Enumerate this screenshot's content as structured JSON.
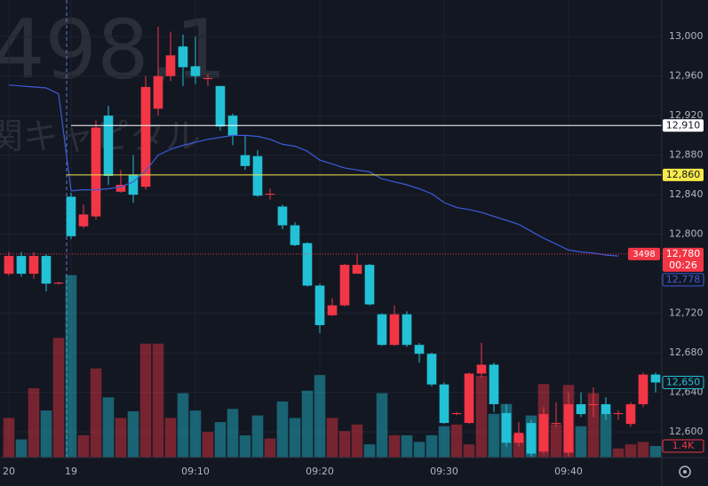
{
  "chart_data": {
    "type": "candlestick",
    "watermark": {
      "symbol": "498,1",
      "name": "関キャピタル"
    },
    "open": [
      12760,
      12778,
      12760,
      12778,
      12750,
      12838,
      12808,
      12818,
      12920,
      12843,
      12860,
      12848,
      12927,
      12960,
      12990,
      12970,
      12957,
      12950,
      12920,
      12880,
      12879,
      12840,
      12828,
      12809,
      12791,
      12748,
      12718,
      12728,
      12760,
      12769,
      12719,
      12688,
      12719,
      12688,
      12679,
      12648,
      12618,
      12609,
      12659,
      12668,
      12619,
      12589,
      12609,
      12580,
      12608,
      12579,
      12628,
      12627,
      12628,
      12618,
      12608,
      12628,
      12658
    ],
    "high": [
      12782,
      12782,
      12782,
      12780,
      12752,
      12842,
      12830,
      12915,
      12930,
      12865,
      12880,
      12960,
      13010,
      13005,
      13002,
      13000,
      12962,
      12950,
      12922,
      12900,
      12885,
      12846,
      12830,
      12812,
      12792,
      12750,
      12735,
      12770,
      12780,
      12770,
      12720,
      12728,
      12722,
      12690,
      12680,
      12650,
      12620,
      12660,
      12690,
      12670,
      12628,
      12610,
      12612,
      12625,
      12630,
      12640,
      12640,
      12645,
      12635,
      12622,
      12630,
      12660,
      12660
    ],
    "low": [
      12758,
      12757,
      12755,
      12742,
      12749,
      12795,
      12806,
      12815,
      12850,
      12842,
      12832,
      12845,
      12920,
      12955,
      12950,
      12952,
      12950,
      12905,
      12890,
      12865,
      12838,
      12835,
      12805,
      12788,
      12747,
      12700,
      12717,
      12727,
      12760,
      12728,
      12687,
      12687,
      12686,
      12670,
      12646,
      12608,
      12617,
      12608,
      12655,
      12620,
      12585,
      12585,
      12575,
      12578,
      12605,
      12575,
      12615,
      12615,
      12612,
      12612,
      12605,
      12625,
      12640
    ],
    "close": [
      12778,
      12760,
      12778,
      12750,
      12751,
      12798,
      12820,
      12908,
      12859,
      12850,
      12840,
      12949,
      12960,
      12981,
      12969,
      12960,
      12958,
      12909,
      12900,
      12869,
      12839,
      12841,
      12809,
      12789,
      12748,
      12708,
      12728,
      12769,
      12769,
      12729,
      12688,
      12719,
      12688,
      12679,
      12648,
      12609,
      12619,
      12659,
      12668,
      12628,
      12589,
      12599,
      12578,
      12618,
      12609,
      12628,
      12618,
      12628,
      12618,
      12619,
      12628,
      12658,
      12650
    ],
    "volume": [
      4800,
      2200,
      8400,
      5700,
      14500,
      22100,
      2700,
      10800,
      7300,
      4800,
      5600,
      13800,
      13800,
      4800,
      7800,
      5700,
      3100,
      4300,
      5900,
      2700,
      5100,
      2300,
      6800,
      4800,
      8100,
      10000,
      4800,
      3200,
      4000,
      1600,
      7800,
      2700,
      2700,
      1900,
      2700,
      3800,
      4000,
      1600,
      9900,
      5300,
      6500,
      2700,
      5100,
      8900,
      4000,
      8800,
      3800,
      7800,
      5300,
      1100,
      1600,
      1900,
      1400
    ],
    "ma": [
      12951,
      12950,
      12949,
      12948,
      12942,
      12844,
      12845,
      12845,
      12846,
      12848,
      12853,
      12864,
      12880,
      12886,
      12890,
      12893,
      12896,
      12898,
      12900,
      12900,
      12899,
      12896,
      12891,
      12889,
      12884,
      12875,
      12871,
      12867,
      12865,
      12863,
      12856,
      12853,
      12850,
      12846,
      12841,
      12832,
      12827,
      12825,
      12822,
      12818,
      12814,
      12810,
      12803,
      12796,
      12790,
      12784,
      12782,
      12781,
      12779,
      12778,
      null,
      null,
      null
    ],
    "up_color": "#f23645",
    "down_color": "#22c1d6",
    "ma_color": "#3d5bd9",
    "ylim": [
      12574,
      13037
    ],
    "yticks": [
      {
        "value": 12600,
        "label": "12,600"
      },
      {
        "value": 12640,
        "label": "12,640"
      },
      {
        "value": 12680,
        "label": "12,680"
      },
      {
        "value": 12720,
        "label": "12,720"
      },
      {
        "value": 12800,
        "label": "12,800"
      },
      {
        "value": 12840,
        "label": "12,840"
      },
      {
        "value": 12880,
        "label": "12,880"
      },
      {
        "value": 12920,
        "label": "12,920"
      },
      {
        "value": 12960,
        "label": "12,960"
      },
      {
        "value": 13000,
        "label": "13,000"
      }
    ],
    "vlim": [
      0,
      24000
    ],
    "xlim": [
      -0.714,
      52.5
    ],
    "xticks": [
      {
        "value": 0,
        "label": "20"
      },
      {
        "value": 5,
        "label": "19"
      },
      {
        "value": 15,
        "label": "09:10"
      },
      {
        "value": 25,
        "label": "09:20"
      },
      {
        "value": 35,
        "label": "09:30"
      },
      {
        "value": 45,
        "label": "09:40"
      }
    ],
    "grid": true,
    "levels": [
      {
        "value": 12910,
        "label": "12,910",
        "color": "#ffffff",
        "start": 5
      },
      {
        "value": 12860,
        "label": "12,860",
        "color": "#f5e94b",
        "start": 4.6
      }
    ],
    "last_price": {
      "value": 12780,
      "label": "12,780",
      "countdown": "00:26",
      "quantity": 3498
    },
    "ma_label": {
      "value": 12778,
      "label": "12,778"
    },
    "close_label": {
      "value": 12650,
      "label": "12,650"
    },
    "volume_label": {
      "value": 1400,
      "label": "1.4K"
    }
  }
}
